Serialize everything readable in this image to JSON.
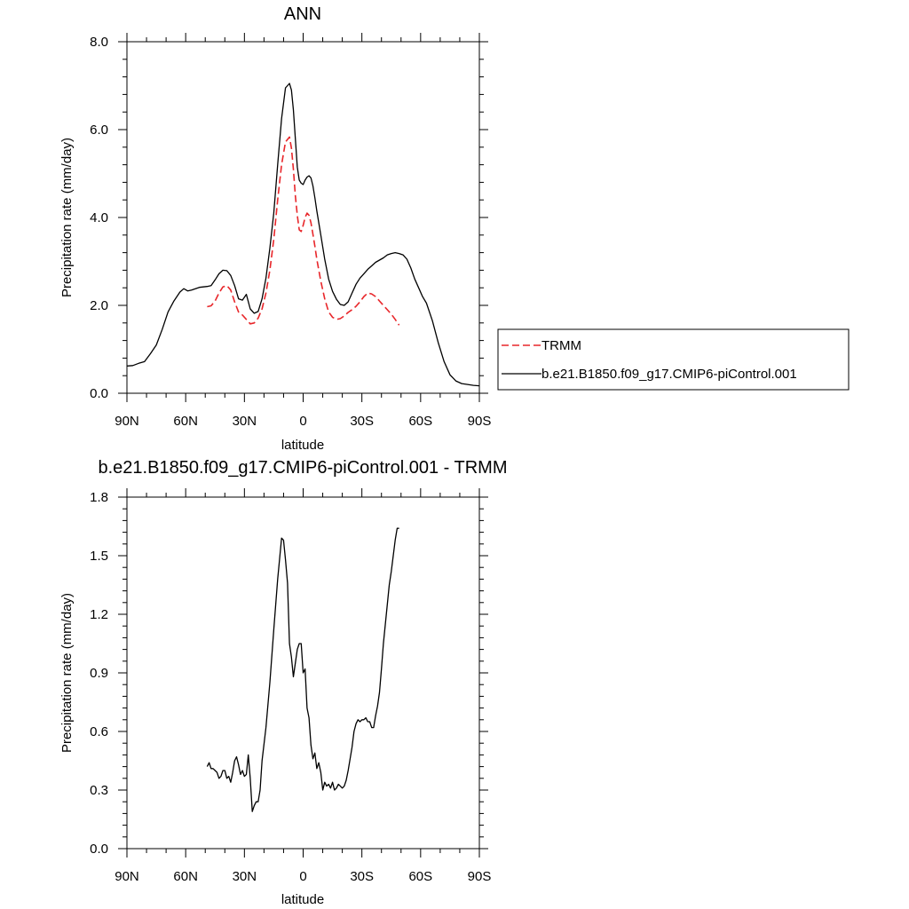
{
  "chart_data": [
    {
      "type": "line",
      "title": "ANN",
      "xlabel": "latitude",
      "ylabel": "Precipitation rate (mm/day)",
      "xlim": [
        90,
        -90
      ],
      "ylim": [
        0,
        8
      ],
      "xticks": [
        90,
        60,
        30,
        0,
        -30,
        -60,
        -90
      ],
      "xtick_labels": [
        "90N",
        "60N",
        "30N",
        "0",
        "30S",
        "60S",
        "90S"
      ],
      "yticks": [
        0,
        2,
        4,
        6,
        8
      ],
      "ytick_labels": [
        "0.0",
        "2.0",
        "4.0",
        "6.0",
        "8.0"
      ],
      "grid": false,
      "legend_position": "right",
      "series": [
        {
          "name": "TRMM",
          "color": "#e8262a",
          "dash": "dashed",
          "x": [
            49,
            47,
            45,
            43,
            41,
            39,
            37,
            35,
            33,
            31,
            29,
            27,
            25,
            23,
            21,
            19,
            17,
            15,
            13,
            11,
            9,
            7,
            6,
            5,
            4,
            3,
            2,
            1,
            0,
            -1,
            -2,
            -3,
            -4,
            -5,
            -6,
            -7,
            -9,
            -11,
            -13,
            -15,
            -17,
            -19,
            -21,
            -23,
            -25,
            -27,
            -29,
            -31,
            -33,
            -35,
            -37,
            -39,
            -41,
            -43,
            -45,
            -47,
            -49
          ],
          "y": [
            1.97,
            1.99,
            2.1,
            2.28,
            2.42,
            2.45,
            2.35,
            2.08,
            1.85,
            1.78,
            1.68,
            1.58,
            1.6,
            1.71,
            1.92,
            2.28,
            2.8,
            3.5,
            4.4,
            5.2,
            5.72,
            5.83,
            5.58,
            5.1,
            4.5,
            4.05,
            3.72,
            3.68,
            3.82,
            4.0,
            4.1,
            4.05,
            3.88,
            3.62,
            3.35,
            3.05,
            2.55,
            2.15,
            1.85,
            1.73,
            1.68,
            1.7,
            1.76,
            1.84,
            1.9,
            1.98,
            2.08,
            2.2,
            2.28,
            2.26,
            2.2,
            2.1,
            2.0,
            1.9,
            1.8,
            1.68,
            1.55
          ]
        },
        {
          "name": "b.e21.B1850.f09_g17.CMIP6-piControl.001",
          "color": "#000000",
          "dash": "solid",
          "x": [
            90,
            87,
            84,
            81,
            78,
            75,
            72,
            69,
            66,
            63,
            61,
            59,
            57,
            55,
            53,
            51,
            49,
            47,
            45,
            43,
            41,
            39,
            37,
            35,
            33,
            31,
            29,
            27,
            25,
            23,
            21,
            19,
            17,
            15,
            13,
            11,
            9,
            7,
            6,
            5,
            4,
            3,
            2,
            1,
            0,
            -1,
            -2,
            -3,
            -4,
            -5,
            -6,
            -7,
            -9,
            -11,
            -13,
            -15,
            -17,
            -19,
            -21,
            -23,
            -25,
            -27,
            -29,
            -31,
            -33,
            -35,
            -37,
            -39,
            -41,
            -43,
            -45,
            -47,
            -49,
            -51,
            -53,
            -55,
            -57,
            -59,
            -61,
            -63,
            -66,
            -69,
            -72,
            -75,
            -78,
            -81,
            -84,
            -87,
            -90
          ],
          "y": [
            0.62,
            0.63,
            0.68,
            0.72,
            0.9,
            1.1,
            1.45,
            1.85,
            2.1,
            2.3,
            2.38,
            2.33,
            2.35,
            2.38,
            2.41,
            2.42,
            2.43,
            2.45,
            2.58,
            2.72,
            2.8,
            2.79,
            2.68,
            2.45,
            2.15,
            2.12,
            2.25,
            1.92,
            1.82,
            1.86,
            2.15,
            2.62,
            3.3,
            4.1,
            5.2,
            6.25,
            6.95,
            7.05,
            6.9,
            6.45,
            5.8,
            5.15,
            4.85,
            4.78,
            4.75,
            4.85,
            4.92,
            4.95,
            4.9,
            4.72,
            4.45,
            4.15,
            3.6,
            3.05,
            2.6,
            2.32,
            2.14,
            2.02,
            2.0,
            2.08,
            2.28,
            2.48,
            2.62,
            2.72,
            2.82,
            2.9,
            2.98,
            3.03,
            3.08,
            3.15,
            3.18,
            3.2,
            3.18,
            3.15,
            3.05,
            2.85,
            2.6,
            2.4,
            2.2,
            2.05,
            1.65,
            1.15,
            0.72,
            0.42,
            0.28,
            0.22,
            0.2,
            0.18,
            0.17
          ]
        }
      ]
    },
    {
      "type": "line",
      "title": "b.e21.B1850.f09_g17.CMIP6-piControl.001 - TRMM",
      "xlabel": "latitude",
      "ylabel": "Precipitation rate (mm/day)",
      "xlim": [
        90,
        -90
      ],
      "ylim": [
        0,
        1.8
      ],
      "xticks": [
        90,
        60,
        30,
        0,
        -30,
        -60,
        -90
      ],
      "xtick_labels": [
        "90N",
        "60N",
        "30N",
        "0",
        "30S",
        "60S",
        "90S"
      ],
      "yticks": [
        0,
        0.3,
        0.6,
        0.9,
        1.2,
        1.5,
        1.8
      ],
      "ytick_labels": [
        "0.0",
        "0.3",
        "0.6",
        "0.9",
        "1.2",
        "1.5",
        "1.8"
      ],
      "grid": false,
      "series": [
        {
          "color": "#000000",
          "dash": "solid",
          "x": [
            49,
            48,
            47,
            46,
            45,
            44,
            43,
            42,
            41,
            40,
            39,
            38,
            37,
            36,
            35,
            34,
            33,
            32,
            31,
            30,
            29,
            28,
            27,
            26,
            25,
            24,
            23,
            22,
            21,
            19,
            17,
            15,
            13,
            11,
            10,
            9,
            8,
            7,
            6,
            5,
            4,
            3,
            2,
            1,
            0,
            -1,
            -2,
            -3,
            -4,
            -5,
            -6,
            -7,
            -8,
            -9,
            -10,
            -11,
            -12,
            -13,
            -14,
            -15,
            -16,
            -17,
            -18,
            -19,
            -20,
            -21,
            -22,
            -23,
            -24,
            -25,
            -26,
            -27,
            -28,
            -29,
            -30,
            -31,
            -32,
            -33,
            -34,
            -35,
            -36,
            -37,
            -38,
            -39,
            -40,
            -41,
            -42,
            -43,
            -44,
            -45,
            -46,
            -47,
            -48,
            -49
          ],
          "y": [
            0.42,
            0.44,
            0.41,
            0.41,
            0.4,
            0.39,
            0.36,
            0.37,
            0.4,
            0.4,
            0.36,
            0.37,
            0.34,
            0.39,
            0.45,
            0.47,
            0.43,
            0.38,
            0.4,
            0.37,
            0.38,
            0.48,
            0.36,
            0.19,
            0.22,
            0.24,
            0.24,
            0.3,
            0.45,
            0.62,
            0.85,
            1.12,
            1.38,
            1.59,
            1.58,
            1.48,
            1.36,
            1.05,
            0.98,
            0.88,
            0.95,
            1.02,
            1.05,
            1.05,
            0.9,
            0.92,
            0.72,
            0.67,
            0.53,
            0.46,
            0.49,
            0.41,
            0.44,
            0.39,
            0.3,
            0.34,
            0.32,
            0.33,
            0.31,
            0.34,
            0.3,
            0.31,
            0.33,
            0.32,
            0.31,
            0.32,
            0.35,
            0.4,
            0.46,
            0.52,
            0.6,
            0.64,
            0.66,
            0.65,
            0.66,
            0.66,
            0.67,
            0.65,
            0.65,
            0.62,
            0.62,
            0.68,
            0.73,
            0.8,
            0.92,
            1.05,
            1.15,
            1.25,
            1.35,
            1.42,
            1.5,
            1.58,
            1.64,
            1.64
          ]
        }
      ]
    }
  ]
}
